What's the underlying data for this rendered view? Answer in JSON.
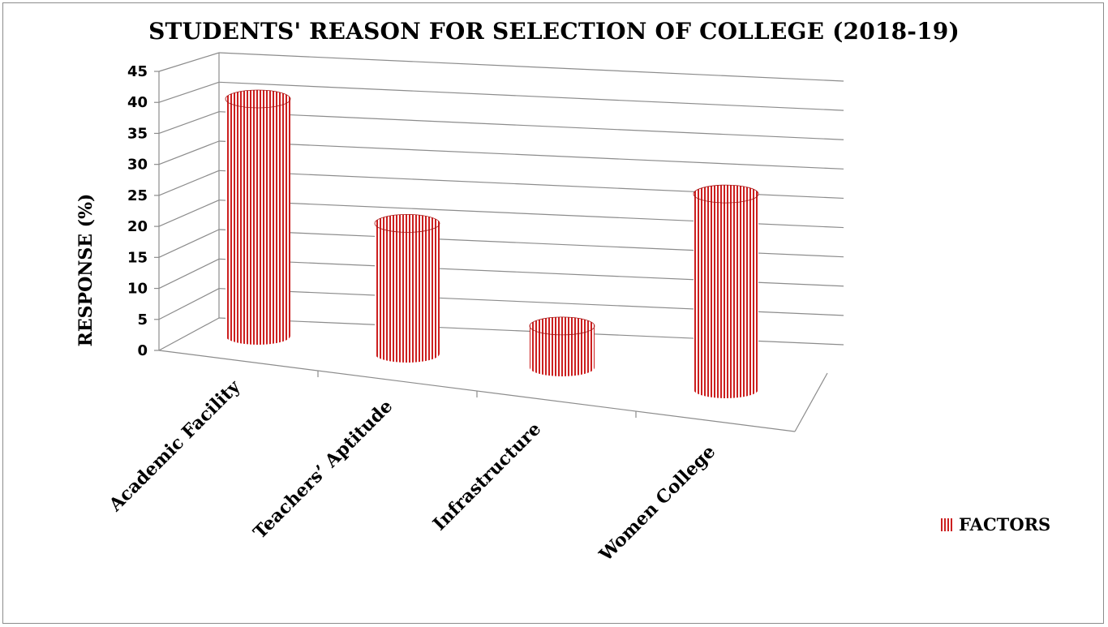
{
  "chart_data": {
    "type": "bar",
    "title": "STUDENTS' REASON FOR SELECTION OF COLLEGE (2018-19)",
    "xlabel": "",
    "ylabel": "RESPONSE (%)",
    "ylim": [
      0,
      45
    ],
    "yticks": [
      "0",
      "5",
      "10",
      "15",
      "20",
      "25",
      "30",
      "35",
      "40",
      "45"
    ],
    "categories": [
      "Academic Facility",
      "Teachers’ Aptitude",
      "Infrastructure",
      "Women College"
    ],
    "series": [
      {
        "name": "FACTORS",
        "values": [
          40,
          22,
          7,
          33
        ]
      }
    ],
    "grid": true,
    "legend": "right",
    "colors": {
      "bar": "#cc1f1f",
      "stripe_bg": "#ffffff",
      "grid": "#8c8c8c"
    }
  }
}
